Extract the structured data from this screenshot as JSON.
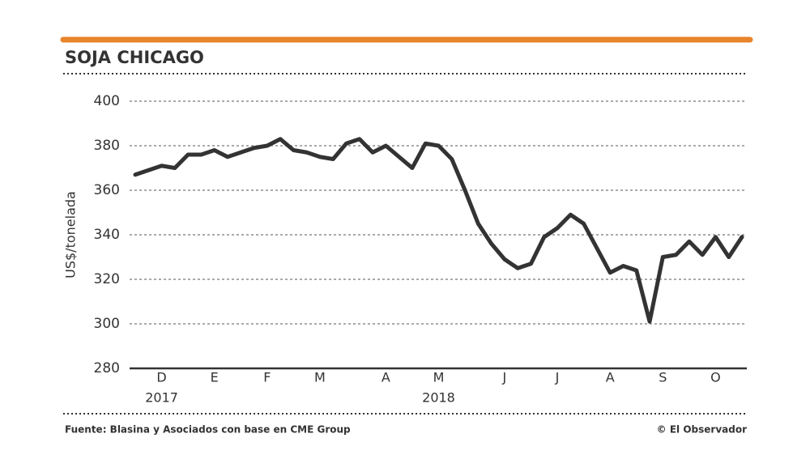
{
  "chart_data": {
    "type": "line",
    "title": "SOJA CHICAGO",
    "y_label": "US$/tonelada",
    "source": "Fuente: Blasina y Asociados con base en CME Group",
    "credit": "© El Observador",
    "categories": [
      null,
      null,
      "D",
      null,
      null,
      null,
      "E",
      null,
      null,
      null,
      "F",
      null,
      null,
      null,
      "M",
      null,
      null,
      null,
      null,
      "A",
      null,
      null,
      null,
      "M",
      null,
      null,
      null,
      null,
      "J",
      null,
      null,
      null,
      "J",
      null,
      null,
      null,
      "A",
      null,
      null,
      null,
      "S",
      null,
      null,
      null,
      "O",
      null,
      null
    ],
    "years": [
      null,
      null,
      "2017",
      null,
      null,
      null,
      null,
      null,
      null,
      null,
      null,
      null,
      null,
      null,
      null,
      null,
      null,
      null,
      null,
      null,
      null,
      null,
      null,
      "2018",
      null,
      null,
      null,
      null,
      null,
      null,
      null,
      null,
      null,
      null,
      null,
      null,
      null,
      null,
      null,
      null,
      null,
      null,
      null,
      null,
      null,
      null,
      null
    ],
    "series": [
      {
        "color": "#333333",
        "values": [
          367,
          369,
          371,
          370,
          376,
          376,
          378,
          375,
          377,
          379,
          380,
          383,
          378,
          377,
          375,
          374,
          381,
          383,
          377,
          380,
          375,
          370,
          381,
          380,
          374,
          360,
          345,
          336,
          329,
          325,
          327,
          339,
          343,
          349,
          345,
          334,
          323,
          326,
          324,
          301,
          330,
          331,
          337,
          331,
          339,
          330,
          339
        ]
      }
    ],
    "ylim": [
      280,
      400
    ],
    "yticks": [
      280,
      300,
      320,
      340,
      360,
      380,
      400
    ],
    "grid": true
  }
}
